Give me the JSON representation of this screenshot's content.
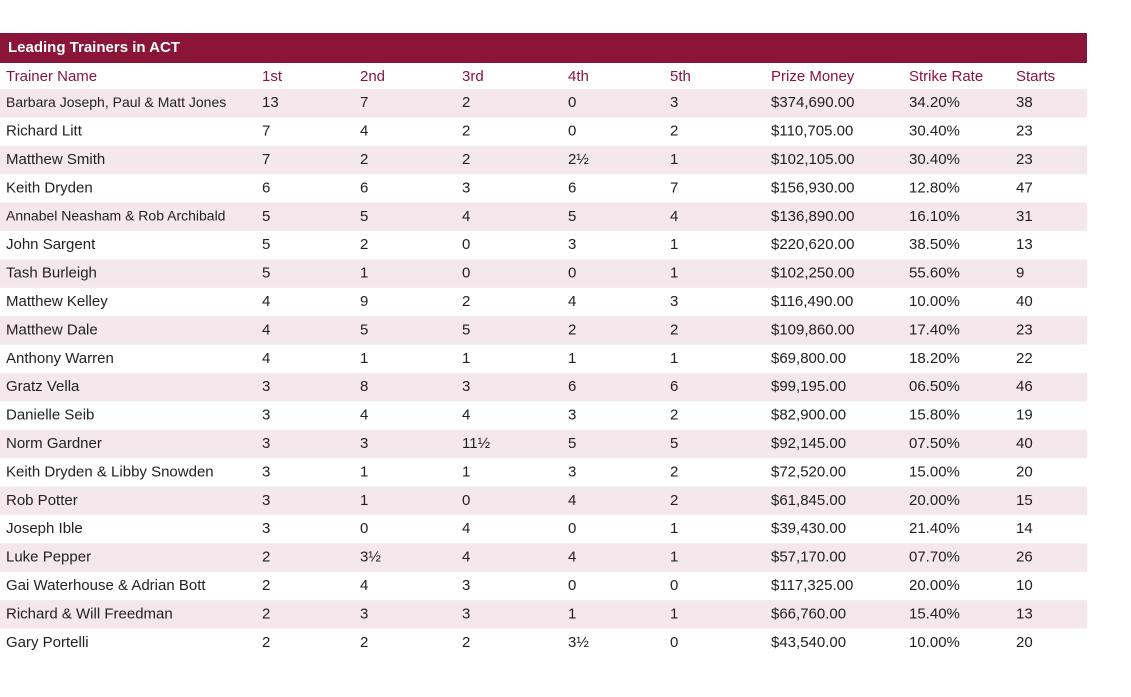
{
  "table": {
    "title": "Leading Trainers in ACT",
    "columns": [
      "Trainer Name",
      "1st",
      "2nd",
      "3rd",
      "4th",
      "5th",
      "Prize Money",
      "Strike Rate",
      "Starts"
    ],
    "rows": [
      [
        "Barbara Joseph, Paul & Matt Jones",
        "13",
        "7",
        "2",
        "0",
        "3",
        "$374,690.00",
        "34.20%",
        "38"
      ],
      [
        "Richard Litt",
        "7",
        "4",
        "2",
        "0",
        "2",
        "$110,705.00",
        "30.40%",
        "23"
      ],
      [
        "Matthew Smith",
        "7",
        "2",
        "2",
        "2½",
        "1",
        "$102,105.00",
        "30.40%",
        "23"
      ],
      [
        "Keith Dryden",
        "6",
        "6",
        "3",
        "6",
        "7",
        "$156,930.00",
        "12.80%",
        "47"
      ],
      [
        "Annabel Neasham & Rob Archibald",
        "5",
        "5",
        "4",
        "5",
        "4",
        "$136,890.00",
        "16.10%",
        "31"
      ],
      [
        "John Sargent",
        "5",
        "2",
        "0",
        "3",
        "1",
        "$220,620.00",
        "38.50%",
        "13"
      ],
      [
        "Tash Burleigh",
        "5",
        "1",
        "0",
        "0",
        "1",
        "$102,250.00",
        "55.60%",
        "9"
      ],
      [
        "Matthew Kelley",
        "4",
        "9",
        "2",
        "4",
        "3",
        "$116,490.00",
        "10.00%",
        "40"
      ],
      [
        "Matthew Dale",
        "4",
        "5",
        "5",
        "2",
        "2",
        "$109,860.00",
        "17.40%",
        "23"
      ],
      [
        "Anthony Warren",
        "4",
        "1",
        "1",
        "1",
        "1",
        "$69,800.00",
        "18.20%",
        "22"
      ],
      [
        "Gratz Vella",
        "3",
        "8",
        "3",
        "6",
        "6",
        "$99,195.00",
        "06.50%",
        "46"
      ],
      [
        "Danielle Seib",
        "3",
        "4",
        "4",
        "3",
        "2",
        "$82,900.00",
        "15.80%",
        "19"
      ],
      [
        "Norm Gardner",
        "3",
        "3",
        "11½",
        "5",
        "5",
        "$92,145.00",
        "07.50%",
        "40"
      ],
      [
        "Keith Dryden & Libby Snowden",
        "3",
        "1",
        "1",
        "3",
        "2",
        "$72,520.00",
        "15.00%",
        "20"
      ],
      [
        "Rob Potter",
        "3",
        "1",
        "0",
        "4",
        "2",
        "$61,845.00",
        "20.00%",
        "15"
      ],
      [
        "Joseph Ible",
        "3",
        "0",
        "4",
        "0",
        "1",
        "$39,430.00",
        "21.40%",
        "14"
      ],
      [
        "Luke Pepper",
        "2",
        "3½",
        "4",
        "4",
        "1",
        "$57,170.00",
        "07.70%",
        "26"
      ],
      [
        "Gai Waterhouse & Adrian Bott",
        "2",
        "4",
        "3",
        "0",
        "0",
        "$117,325.00",
        "20.00%",
        "10"
      ],
      [
        "Richard & Will Freedman",
        "2",
        "3",
        "3",
        "1",
        "1",
        "$66,760.00",
        "15.40%",
        "13"
      ],
      [
        "Gary Portelli",
        "2",
        "2",
        "2",
        "3½",
        "0",
        "$43,540.00",
        "10.00%",
        "20"
      ]
    ]
  }
}
